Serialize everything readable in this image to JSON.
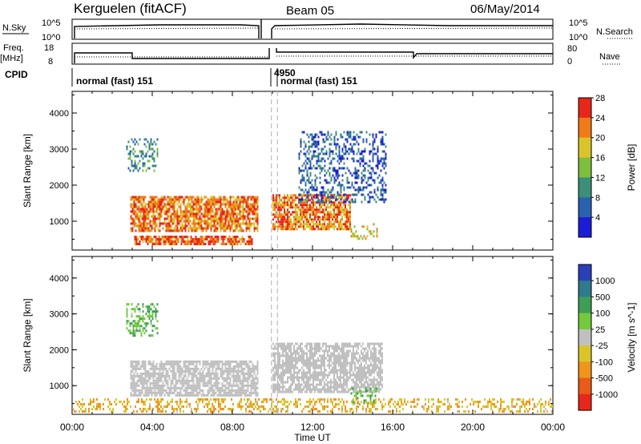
{
  "header": {
    "station": "Kerguelen (fitACF)",
    "beam": "Beam 05",
    "date": "06/May/2014"
  },
  "top_panels": {
    "nsky_label": "N.Sky",
    "nsky_ticks": [
      "10^5",
      "10^0"
    ],
    "nsearch_label": "N.Search",
    "nsearch_ticks": [
      "10^5",
      "10^0"
    ],
    "freq_label": "Freq.",
    "freq_unit": "[MHz]",
    "freq_ticks": [
      "18",
      "8"
    ],
    "nave_label": "Nave",
    "nave_ticks": [
      "80",
      "0"
    ],
    "cpid_label": "CPID",
    "cpid_left": "normal (fast) 151",
    "cpid_mid": "4950",
    "cpid_right": "normal (fast) 151"
  },
  "chart_data": [
    {
      "type": "heatmap",
      "title": "",
      "xlabel": "Time UT",
      "ylabel": "Slant Range [km]",
      "xlim": [
        0,
        24
      ],
      "ylim": [
        200,
        4600
      ],
      "x_ticks": [
        "00:00",
        "04:00",
        "08:00",
        "12:00",
        "16:00",
        "20:00",
        "00:00"
      ],
      "y_ticks": [
        "1000",
        "2000",
        "3000",
        "4000"
      ],
      "colorbar_label": "Power [dB]",
      "colorbar_ticks": [
        "4",
        "8",
        "12",
        "16",
        "20",
        "24",
        "28"
      ],
      "colorbar_colors": [
        "#1c1cd6",
        "#2a62b0",
        "#3d8f7a",
        "#7dbf3f",
        "#d9c52a",
        "#f07a18",
        "#e8261a"
      ],
      "regions": [
        {
          "x": [
            2.9,
            9.3
          ],
          "range": [
            700,
            1700
          ],
          "value": 24
        },
        {
          "x": [
            10.0,
            13.9
          ],
          "range": [
            800,
            1750
          ],
          "value": 24
        },
        {
          "x": [
            3.1,
            9.0
          ],
          "range": [
            350,
            600
          ],
          "value": 26
        },
        {
          "x": [
            13.9,
            15.2
          ],
          "range": [
            500,
            950
          ],
          "value": 20
        },
        {
          "x": [
            2.7,
            4.3
          ],
          "range": [
            2400,
            3300
          ],
          "value": 12
        },
        {
          "x": [
            11.3,
            15.7
          ],
          "range": [
            1500,
            3500
          ],
          "value": 8
        }
      ]
    },
    {
      "type": "heatmap",
      "title": "",
      "xlabel": "Time UT",
      "ylabel": "Slant Range [km]",
      "xlim": [
        0,
        24
      ],
      "ylim": [
        200,
        4600
      ],
      "x_ticks": [
        "00:00",
        "04:00",
        "08:00",
        "12:00",
        "16:00",
        "20:00",
        "00:00"
      ],
      "y_ticks": [
        "1000",
        "2000",
        "3000",
        "4000"
      ],
      "colorbar_label": "Velocity [m s^-1]",
      "colorbar_ticks": [
        "1000",
        "500",
        "100",
        "25",
        "-25",
        "-100",
        "-500",
        "-1000"
      ],
      "colorbar_colors": [
        "#2b3fb8",
        "#2f7a8c",
        "#3e9e55",
        "#74c93c",
        "#c0c0c0",
        "#d9c52a",
        "#f0941a",
        "#ea5a18",
        "#e8261a"
      ],
      "regions": [
        {
          "x": [
            2.9,
            9.3
          ],
          "range": [
            700,
            1700
          ],
          "value": 0
        },
        {
          "x": [
            10.0,
            15.5
          ],
          "range": [
            800,
            2200
          ],
          "value": 0
        },
        {
          "x": [
            13.9,
            15.2
          ],
          "range": [
            500,
            950
          ],
          "value": 100
        },
        {
          "x": [
            2.7,
            4.3
          ],
          "range": [
            2400,
            3300
          ],
          "value": 100
        },
        {
          "x": [
            0,
            24
          ],
          "range": [
            300,
            650
          ],
          "value": -100
        }
      ]
    }
  ]
}
